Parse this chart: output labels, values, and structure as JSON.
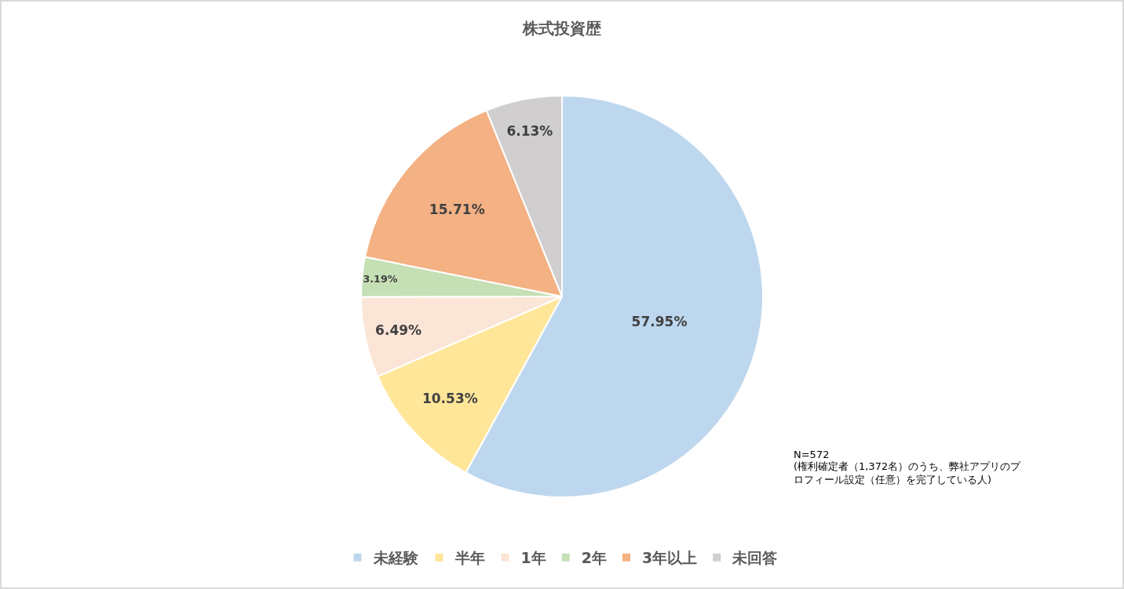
{
  "chart_data": {
    "type": "pie",
    "title": "株式投資歴",
    "categories": [
      "未経験",
      "半年",
      "1年",
      "2年",
      "3年以上",
      "未回答"
    ],
    "values": [
      57.95,
      10.53,
      6.49,
      3.19,
      15.71,
      6.13
    ],
    "value_labels": [
      "57.95%",
      "10.53%",
      "6.49%",
      "3.19%",
      "15.71%",
      "6.13%"
    ],
    "colors": [
      "#bdd7ee",
      "#ffe699",
      "#fbe5d6",
      "#c5e0b4",
      "#f4b183",
      "#d0cece"
    ],
    "legend": "bottom",
    "annotations": [
      "N=572",
      "(権利確定者（1,372名）のうち、弊社アプリのプロフィール設定（任意）を完了している人)"
    ]
  }
}
